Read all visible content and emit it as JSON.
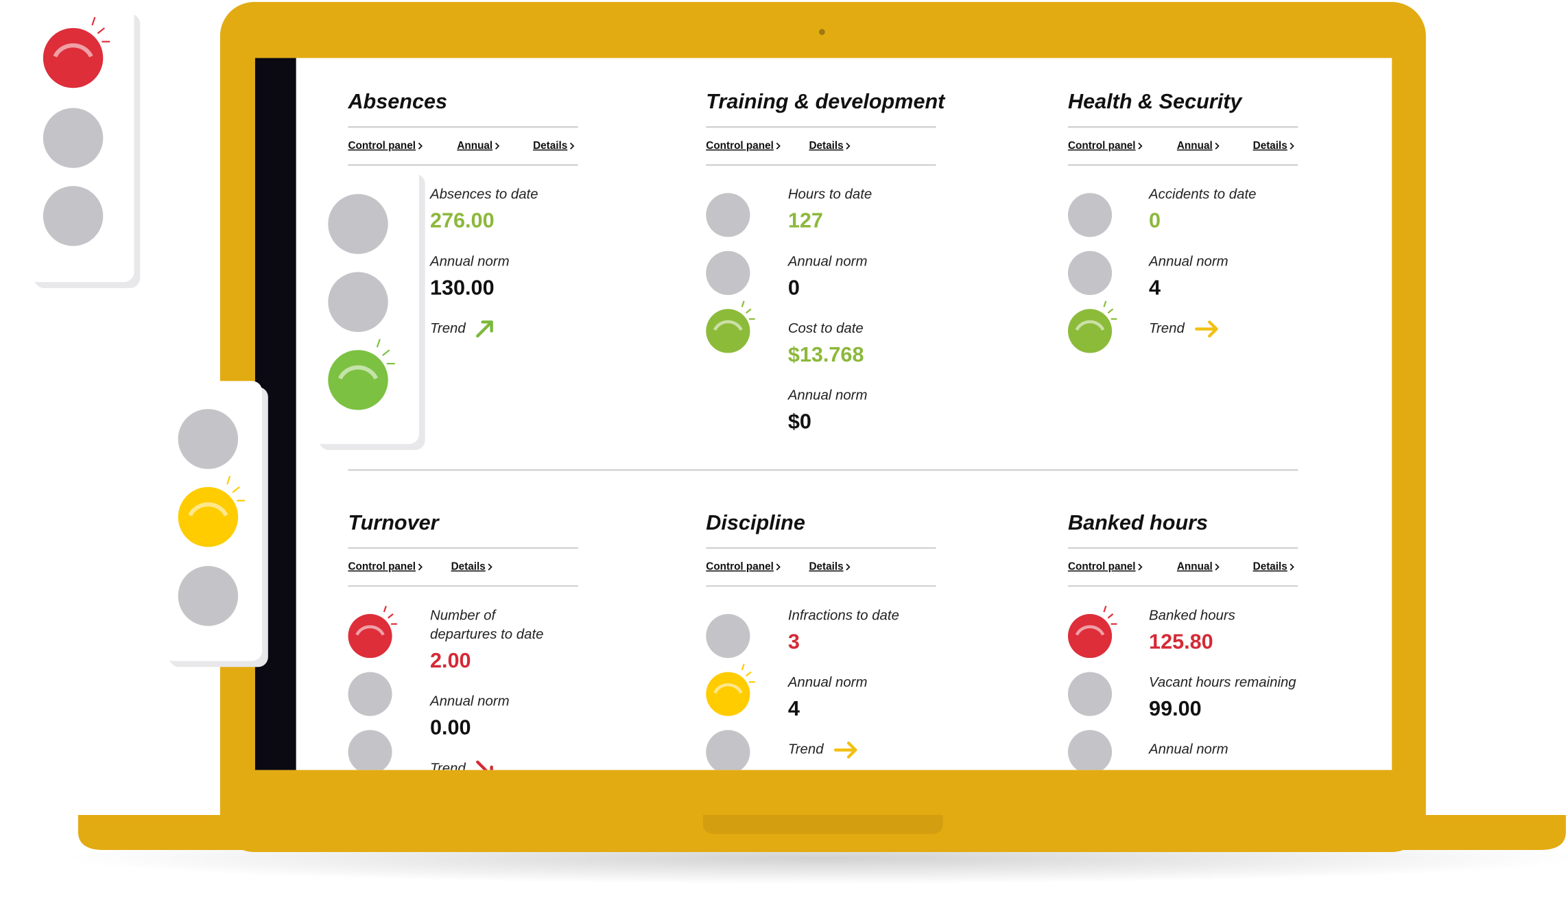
{
  "panels": [
    {
      "title": "Absences",
      "links": [
        "Control panel",
        "Annual",
        "Details"
      ],
      "lights": [],
      "metrics": [
        {
          "label": "Absences to date",
          "value": "276.00",
          "color": "#8cb83b"
        },
        {
          "label": "Annual norm",
          "value": "130.00",
          "color": "#111111"
        },
        {
          "label": "Trend",
          "arrow": "up-right",
          "color": "#7cb83a"
        }
      ]
    },
    {
      "title": "Training & development",
      "links": [
        "Control panel",
        "Details"
      ],
      "lights": [
        "#c4c4c8",
        "#c4c4c8",
        "#8cbb3a"
      ],
      "metrics": [
        {
          "label": "Hours to date",
          "value": "127",
          "color": "#8cb83b"
        },
        {
          "label": "Annual norm",
          "value": "0",
          "color": "#111111"
        },
        {
          "label": "Cost to date",
          "value": "$13.768",
          "color": "#8cb83b"
        },
        {
          "label": "Annual norm",
          "value": "$0",
          "color": "#111111"
        }
      ]
    },
    {
      "title": "Health & Security",
      "links": [
        "Control panel",
        "Annual",
        "Details"
      ],
      "lights": [
        "#c4c4c8",
        "#c4c4c8",
        "#8cbb3a"
      ],
      "metrics": [
        {
          "label": "Accidents to date",
          "value": "0",
          "color": "#8cb83b"
        },
        {
          "label": "Annual norm",
          "value": "4",
          "color": "#111111"
        },
        {
          "label": "Trend",
          "arrow": "right",
          "color": "#f2c012"
        }
      ]
    },
    {
      "title": "Turnover",
      "links": [
        "Control panel",
        "Details"
      ],
      "lights": [
        "#dd2e3a",
        "#c4c4c8",
        "#c4c4c8"
      ],
      "metrics": [
        {
          "label": [
            "Number of",
            "departures to date"
          ],
          "value": "2.00",
          "color": "#d42a36"
        },
        {
          "label": "Annual norm",
          "value": "0.00",
          "color": "#111111"
        },
        {
          "label": "Trend",
          "arrow": "down-right",
          "color": "#d42a36"
        }
      ]
    },
    {
      "title": "Discipline",
      "links": [
        "Control panel",
        "Details"
      ],
      "lights": [
        "#c4c4c8",
        "#ffcc00",
        "#c4c4c8"
      ],
      "metrics": [
        {
          "label": "Infractions to date",
          "value": "3",
          "color": "#d42a36"
        },
        {
          "label": "Annual norm",
          "value": "4",
          "color": "#111111"
        },
        {
          "label": "Trend",
          "arrow": "right",
          "color": "#f2c012"
        }
      ]
    },
    {
      "title": "Banked hours",
      "links": [
        "Control panel",
        "Annual",
        "Details"
      ],
      "lights": [
        "#dd2e3a",
        "#c4c4c8",
        "#c4c4c8"
      ],
      "metrics": [
        {
          "label": "Banked hours",
          "value": "125.80",
          "color": "#d42a36"
        },
        {
          "label": "Vacant hours remaining",
          "value": "99.00",
          "color": "#111111"
        },
        {
          "label": "Annual norm"
        }
      ]
    }
  ]
}
